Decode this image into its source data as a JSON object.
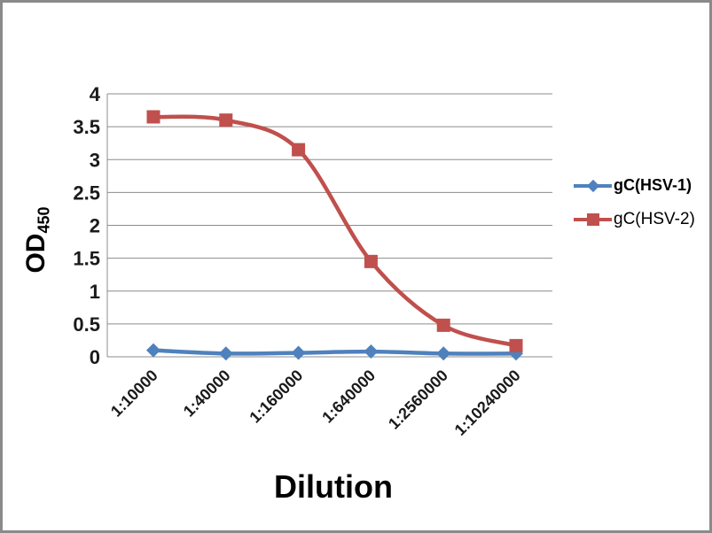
{
  "chart_data": {
    "type": "line",
    "title": "",
    "xlabel": "Dilution",
    "ylabel": "OD",
    "ylabel_subscript": "450",
    "categories": [
      "1:10000",
      "1:40000",
      "1:160000",
      "1:640000",
      "1:2560000",
      "1:10240000"
    ],
    "series": [
      {
        "name": "gC(HSV-1)",
        "color": "#4F81BD",
        "marker": "diamond",
        "values": [
          0.1,
          0.05,
          0.06,
          0.08,
          0.05,
          0.05
        ]
      },
      {
        "name": "gC(HSV-2)",
        "color": "#C0504D",
        "marker": "square",
        "values": [
          3.65,
          3.6,
          3.15,
          1.45,
          0.48,
          0.17
        ]
      }
    ],
    "ylim": [
      0,
      4
    ],
    "y_tick_step": 0.5,
    "y_ticks": [
      "0",
      "0.5",
      "1",
      "1.5",
      "2",
      "2.5",
      "3",
      "3.5",
      "4"
    ],
    "grid": "horizontal",
    "grid_color": "#8c8c8c",
    "axis_color": "#8c8c8c",
    "legend_position": "right",
    "line_smooth": true
  }
}
